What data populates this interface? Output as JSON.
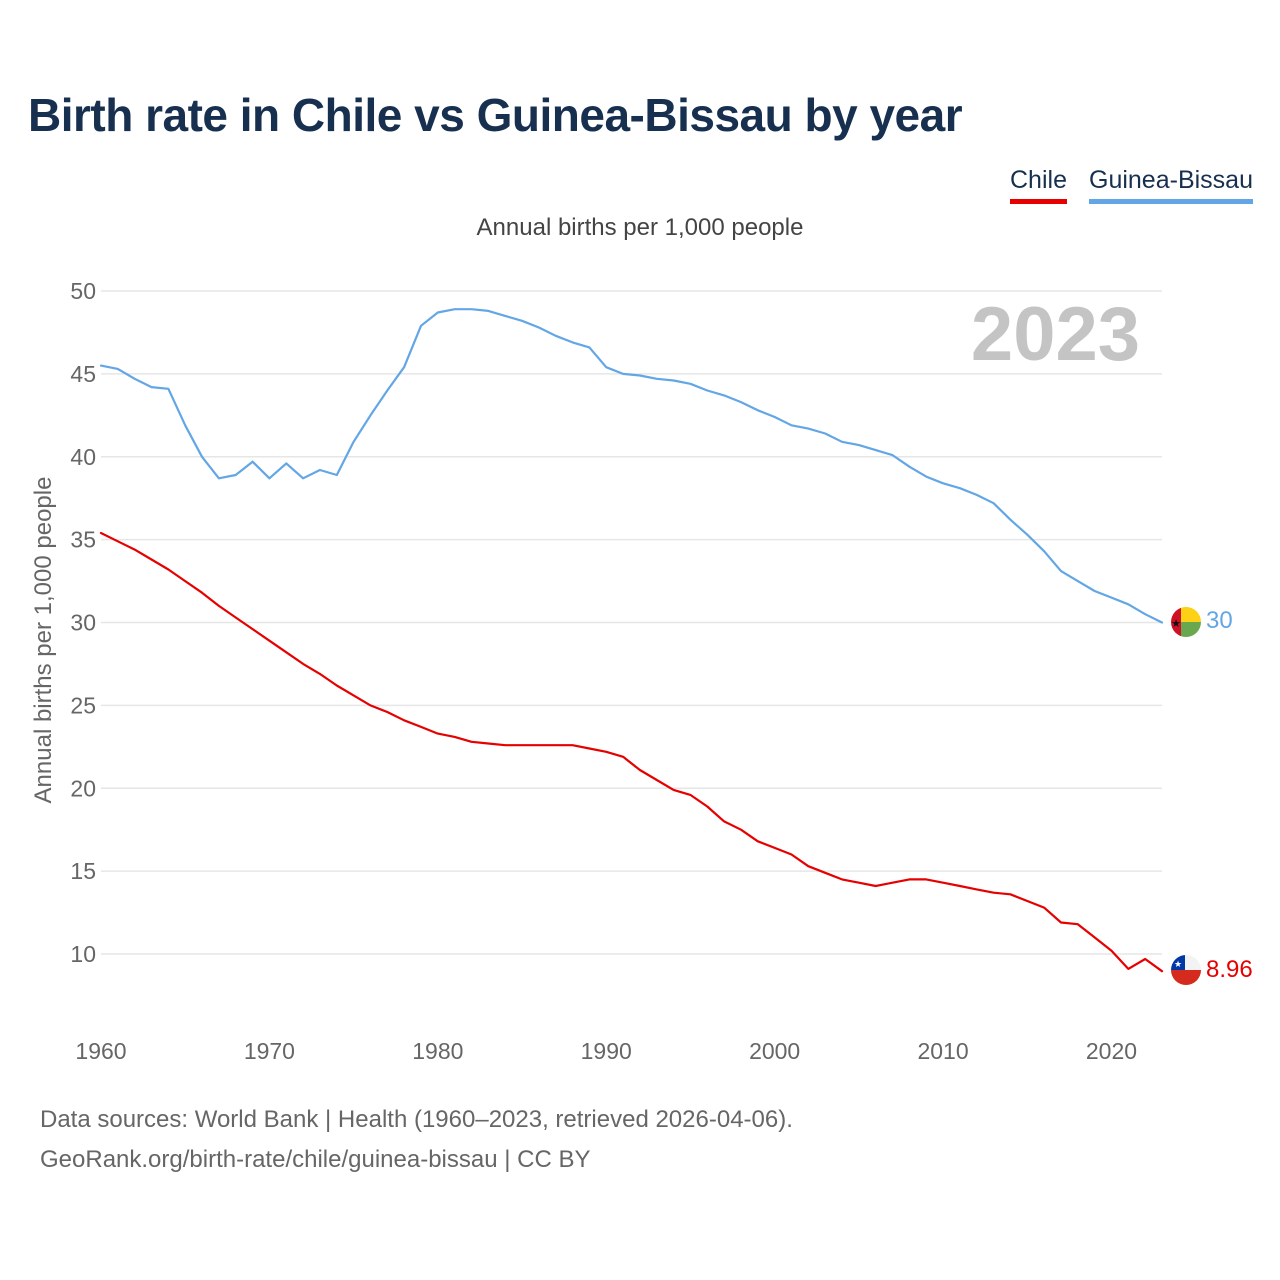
{
  "title": "Birth rate in Chile vs Guinea-Bissau by year",
  "legend": [
    {
      "label": "Chile",
      "color": "#e60000"
    },
    {
      "label": "Guinea-Bissau",
      "color": "#63a6e6"
    }
  ],
  "subtitle": "Annual births per 1,000 people",
  "footer": {
    "line1": "Data sources: World Bank | Health (1960–2023, retrieved 2026-04-06).",
    "line2": "GeoRank.org/birth-rate/chile/guinea-bissau | CC BY"
  },
  "chart_data": {
    "type": "line",
    "title": "Birth rate in Chile vs Guinea-Bissau by year",
    "ylabel": "Annual births per 1,000 people",
    "xlabel": "",
    "year_watermark": "2023",
    "xlim": [
      1960,
      2023
    ],
    "ylim": [
      7,
      50
    ],
    "yticks": [
      10,
      15,
      20,
      25,
      30,
      35,
      40,
      45,
      50
    ],
    "xticks": [
      1960,
      1970,
      1980,
      1990,
      2000,
      2010,
      2020
    ],
    "x_start": 1960,
    "series": [
      {
        "name": "Chile",
        "color": "#e60000",
        "end_label": "8.96",
        "flag": "chile",
        "values": [
          35.4,
          34.9,
          34.4,
          33.8,
          33.2,
          32.5,
          31.8,
          31.0,
          30.3,
          29.6,
          28.9,
          28.2,
          27.5,
          26.9,
          26.2,
          25.6,
          25.0,
          24.6,
          24.1,
          23.7,
          23.3,
          23.1,
          22.8,
          22.7,
          22.6,
          22.6,
          22.6,
          22.6,
          22.6,
          22.4,
          22.2,
          21.9,
          21.1,
          20.5,
          19.9,
          19.6,
          18.9,
          18.0,
          17.5,
          16.8,
          16.4,
          16.0,
          15.3,
          14.9,
          14.5,
          14.3,
          14.1,
          14.3,
          14.5,
          14.5,
          14.3,
          14.1,
          13.9,
          13.7,
          13.6,
          13.2,
          12.8,
          11.9,
          11.8,
          11.0,
          10.2,
          9.1,
          9.7,
          8.96
        ]
      },
      {
        "name": "Guinea-Bissau",
        "color": "#63a6e6",
        "end_label": "30",
        "flag": "guinea-bissau",
        "values": [
          45.5,
          45.3,
          44.7,
          44.2,
          44.1,
          41.9,
          40.0,
          38.7,
          38.9,
          39.7,
          38.7,
          39.6,
          38.7,
          39.2,
          38.9,
          40.9,
          42.5,
          44.0,
          45.4,
          47.9,
          48.7,
          48.9,
          48.9,
          48.8,
          48.5,
          48.2,
          47.8,
          47.3,
          46.9,
          46.6,
          45.4,
          45.0,
          44.9,
          44.7,
          44.6,
          44.4,
          44.0,
          43.7,
          43.3,
          42.8,
          42.4,
          41.9,
          41.7,
          41.4,
          40.9,
          40.7,
          40.4,
          40.1,
          39.4,
          38.8,
          38.4,
          38.1,
          37.7,
          37.2,
          36.2,
          35.3,
          34.3,
          33.1,
          32.5,
          31.9,
          31.5,
          31.1,
          30.5,
          30.0
        ]
      }
    ]
  }
}
